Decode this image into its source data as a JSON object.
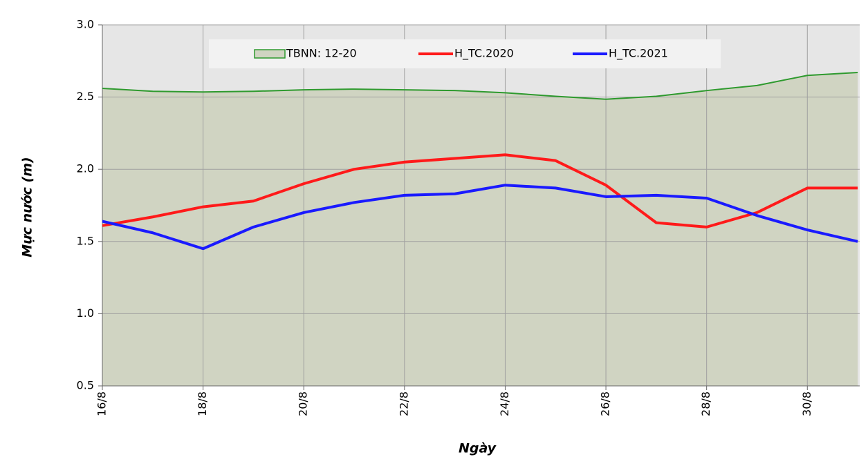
{
  "chart_data": {
    "type": "line",
    "x_label": "Ngày",
    "y_label": "Mực nước (m)",
    "categories": [
      "16/8",
      null,
      "18/8",
      null,
      "20/8",
      null,
      "22/8",
      null,
      "24/8",
      null,
      "26/8",
      null,
      "28/8",
      null,
      "30/8",
      null
    ],
    "series": [
      {
        "name": "TBNN: 12-20",
        "color": "#2e9a2e",
        "fill": "#d0d4c2",
        "area": true,
        "values": [
          2.56,
          2.54,
          2.535,
          2.54,
          2.55,
          2.555,
          2.55,
          2.545,
          2.53,
          2.505,
          2.485,
          2.505,
          2.545,
          2.58,
          2.65,
          2.67
        ]
      },
      {
        "name": "H_TC.2020",
        "color": "#ff1a1a",
        "values": [
          1.61,
          1.67,
          1.74,
          1.78,
          1.9,
          2.0,
          2.05,
          2.075,
          2.1,
          2.06,
          1.89,
          1.63,
          1.6,
          1.7,
          1.87,
          1.87
        ]
      },
      {
        "name": "H_TC.2021",
        "color": "#1a1aff",
        "values": [
          1.64,
          1.56,
          1.45,
          1.6,
          1.7,
          1.77,
          1.82,
          1.83,
          1.89,
          1.87,
          1.81,
          1.82,
          1.8,
          1.68,
          1.58,
          1.5
        ]
      }
    ],
    "ylim": [
      0.5,
      3.0
    ],
    "yticks": [
      0.5,
      {
        "value": 1.0,
        "label": "1.0"
      },
      1.5,
      {
        "value": 2.0,
        "label": "2.0"
      },
      2.5,
      {
        "value": 3.0,
        "label": "3.0"
      }
    ],
    "grid": true,
    "background": "#e6e6e6",
    "legend": "top"
  }
}
